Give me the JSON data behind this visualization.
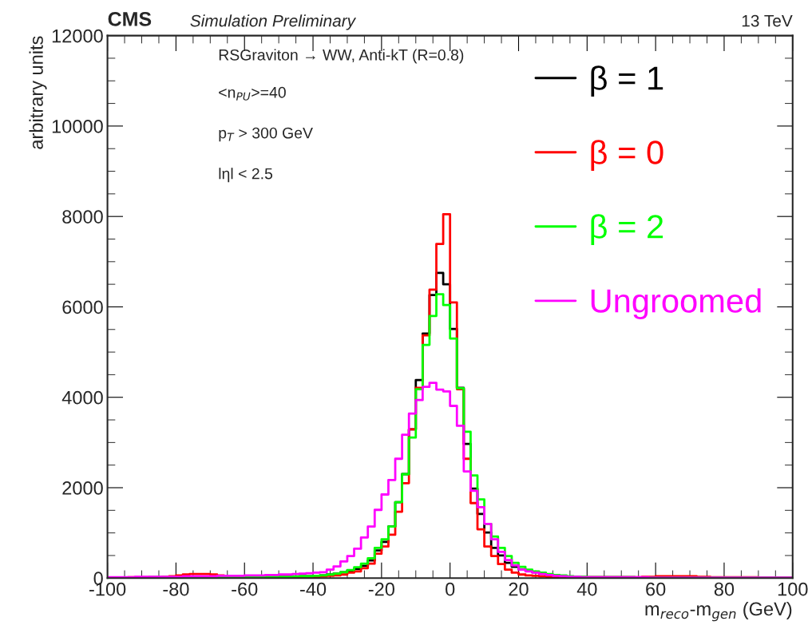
{
  "chart_data": {
    "type": "histogram",
    "title": "CMS",
    "subtitle": "Simulation Preliminary",
    "xlabel": "m$_{reco}$-m$_{gen}$ (GeV)",
    "ylabel": "arbitrary units",
    "annotations": [
      "13 TeV",
      "RSGraviton → WW, Anti-kT (R=0.8)",
      "<n$_{PU}$>=40",
      "p$_{T}$ > 300 GeV",
      "lηl < 2.5"
    ],
    "bins": [
      -100,
      -98,
      -96,
      -94,
      -92,
      -90,
      -88,
      -86,
      -84,
      -82,
      -80,
      -78,
      -76,
      -74,
      -72,
      -70,
      -68,
      -66,
      -64,
      -62,
      -60,
      -58,
      -56,
      -54,
      -52,
      -50,
      -48,
      -46,
      -44,
      -42,
      -40,
      -38,
      -36,
      -34,
      -32,
      -30,
      -28,
      -26,
      -24,
      -22,
      -20,
      -18,
      -16,
      -14,
      -12,
      -10,
      -8,
      -6,
      -4,
      -2,
      0,
      2,
      4,
      6,
      8,
      10,
      12,
      14,
      16,
      18,
      20,
      22,
      24,
      26,
      28,
      30,
      32,
      34,
      36,
      38,
      40,
      42,
      44,
      46,
      48,
      50,
      52,
      54,
      56,
      58,
      60,
      62,
      64,
      66,
      68,
      70,
      72,
      74,
      76,
      78,
      80,
      82,
      84,
      86,
      88,
      90,
      92,
      94,
      96,
      98,
      100
    ],
    "series": [
      {
        "name": "β = 1",
        "color": "#000000",
        "values": [
          10,
          10,
          10,
          10,
          10,
          10,
          20,
          20,
          20,
          20,
          20,
          20,
          20,
          20,
          20,
          20,
          20,
          20,
          20,
          20,
          20,
          20,
          20,
          30,
          30,
          30,
          30,
          30,
          40,
          40,
          50,
          60,
          80,
          100,
          130,
          170,
          200,
          270,
          390,
          610,
          800,
          1140,
          1680,
          2300,
          3290,
          4380,
          5410,
          6260,
          6750,
          6500,
          5510,
          4210,
          2970,
          1980,
          1420,
          1010,
          670,
          500,
          340,
          250,
          190,
          170,
          130,
          100,
          70,
          60,
          40,
          30,
          30,
          20,
          20,
          20,
          20,
          20,
          20,
          20,
          20,
          10,
          10,
          10,
          10,
          10,
          10,
          10,
          10,
          10,
          10,
          10,
          10,
          10,
          10,
          10,
          10,
          10,
          10,
          10,
          10,
          10,
          10,
          10
        ]
      },
      {
        "name": "β = 0",
        "color": "#ff0000",
        "values": [
          10,
          10,
          10,
          20,
          20,
          20,
          20,
          20,
          30,
          40,
          60,
          80,
          90,
          90,
          90,
          80,
          60,
          40,
          30,
          20,
          20,
          20,
          20,
          20,
          20,
          20,
          20,
          20,
          30,
          30,
          30,
          40,
          50,
          60,
          80,
          120,
          150,
          220,
          320,
          540,
          700,
          960,
          1470,
          2100,
          3290,
          4210,
          5370,
          6380,
          7390,
          8050,
          6100,
          4180,
          2640,
          1660,
          1080,
          700,
          490,
          310,
          190,
          120,
          80,
          60,
          50,
          40,
          30,
          20,
          20,
          20,
          20,
          20,
          20,
          20,
          20,
          20,
          20,
          20,
          20,
          20,
          30,
          30,
          40,
          40,
          40,
          40,
          40,
          40,
          30,
          30,
          20,
          20,
          20,
          20,
          20,
          20,
          20,
          10,
          10,
          10,
          10,
          10
        ]
      },
      {
        "name": "β = 2",
        "color": "#00ff00",
        "values": [
          10,
          10,
          10,
          10,
          10,
          10,
          20,
          20,
          20,
          20,
          20,
          20,
          20,
          20,
          20,
          20,
          20,
          20,
          20,
          20,
          20,
          20,
          20,
          30,
          30,
          30,
          30,
          40,
          40,
          40,
          50,
          60,
          80,
          100,
          130,
          180,
          240,
          320,
          440,
          670,
          860,
          1140,
          1680,
          2300,
          3110,
          4180,
          5160,
          5800,
          6280,
          6040,
          5300,
          4200,
          3240,
          2270,
          1740,
          1200,
          920,
          670,
          490,
          340,
          250,
          190,
          150,
          120,
          90,
          70,
          60,
          40,
          30,
          30,
          20,
          20,
          20,
          20,
          20,
          20,
          20,
          10,
          10,
          10,
          10,
          10,
          10,
          10,
          10,
          10,
          10,
          10,
          10,
          10,
          10,
          10,
          10,
          10,
          10,
          10,
          10,
          10,
          10,
          10
        ]
      },
      {
        "name": "Ungroomed",
        "color": "#ff00ff",
        "values": [
          20,
          20,
          20,
          20,
          30,
          30,
          30,
          30,
          30,
          30,
          30,
          40,
          40,
          40,
          40,
          40,
          50,
          50,
          50,
          50,
          60,
          60,
          60,
          70,
          70,
          80,
          80,
          90,
          100,
          110,
          120,
          130,
          190,
          260,
          370,
          490,
          650,
          900,
          1140,
          1510,
          1850,
          2170,
          2640,
          3170,
          3640,
          3940,
          4230,
          4320,
          4170,
          4130,
          3810,
          3370,
          2360,
          1930,
          1570,
          1200,
          860,
          580,
          400,
          280,
          190,
          150,
          120,
          90,
          70,
          50,
          40,
          30,
          30,
          20,
          20,
          20,
          20,
          20,
          20,
          20,
          20,
          20,
          20,
          10,
          10,
          10,
          10,
          10,
          10,
          10,
          10,
          10,
          10,
          10,
          10,
          10,
          10,
          10,
          10,
          10,
          10,
          10,
          10,
          10
        ]
      }
    ],
    "xlim": [
      -100,
      100
    ],
    "xticks": [
      -100,
      -80,
      -60,
      -40,
      -20,
      0,
      20,
      40,
      60,
      80,
      100
    ],
    "ylim": [
      0,
      12000
    ],
    "yticks": [
      0,
      2000,
      4000,
      6000,
      8000,
      10000,
      12000
    ],
    "legend": "top right",
    "grid": false
  }
}
